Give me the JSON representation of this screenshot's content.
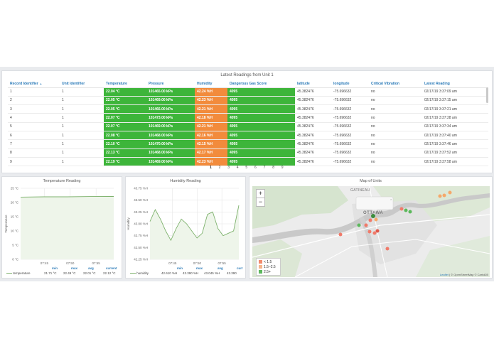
{
  "table_panel": {
    "title": "Latest Readings from Unit 1",
    "columns": [
      "Record Identifier",
      "Unit Identifier",
      "Temperature",
      "Pressure",
      "Humidity",
      "Dangerous Gas Score",
      "latitude",
      "longitude",
      "Critical Vibration",
      "Latest Reading"
    ],
    "sort_indicator": "▲",
    "rows": [
      [
        "1",
        "1",
        "22.04 °C",
        "101465.00 kPa",
        "42.24 %H",
        "4095",
        "45.382476",
        "-75.696632",
        "no",
        "02/17/19 3:37:09 am"
      ],
      [
        "2",
        "1",
        "22.05 °C",
        "101469.00 kPa",
        "42.23 %H",
        "4095",
        "45.382476",
        "-75.696632",
        "no",
        "02/17/19 3:37:15 am"
      ],
      [
        "3",
        "1",
        "22.05 °C",
        "101466.00 kPa",
        "42.21 %H",
        "4095",
        "45.382476",
        "-75.696632",
        "no",
        "02/17/19 3:37:21 am"
      ],
      [
        "4",
        "1",
        "22.07 °C",
        "101473.00 kPa",
        "42.18 %H",
        "4095",
        "45.382476",
        "-75.696632",
        "no",
        "02/17/19 3:37:28 am"
      ],
      [
        "5",
        "1",
        "22.07 °C",
        "101469.00 kPa",
        "42.21 %H",
        "4095",
        "45.382476",
        "-75.696632",
        "no",
        "02/17/19 3:37:34 am"
      ],
      [
        "6",
        "1",
        "22.08 °C",
        "101468.00 kPa",
        "42.16 %H",
        "4095",
        "45.382476",
        "-75.696632",
        "no",
        "02/17/19 3:37:40 am"
      ],
      [
        "7",
        "1",
        "22.10 °C",
        "101470.00 kPa",
        "42.15 %H",
        "4095",
        "45.382476",
        "-75.696632",
        "no",
        "02/17/19 3:37:46 am"
      ],
      [
        "8",
        "1",
        "22.13 °C",
        "101468.00 kPa",
        "42.17 %H",
        "4095",
        "45.382476",
        "-75.696632",
        "no",
        "02/17/19 3:37:52 am"
      ],
      [
        "9",
        "1",
        "22.19 °C",
        "101469.00 kPa",
        "42.23 %H",
        "4095",
        "45.382476",
        "-75.696632",
        "no",
        "02/17/19 3:37:58 am"
      ]
    ],
    "pages": [
      "1",
      "2",
      "3",
      "4",
      "5",
      "6",
      "7",
      "8",
      "9"
    ],
    "current_page": "1",
    "colors": {
      "green": "#3db53a",
      "orange": "#f28b3c",
      "header": "#2a7ab8"
    }
  },
  "temperature_panel": {
    "title": "Temperature Reading",
    "ylabel": "Temperature",
    "legend": {
      "series": "temperature",
      "min_label": "min",
      "max_label": "max",
      "avg_label": "avg",
      "current_label": "current",
      "min": "21.71 °C",
      "max": "22.49 °C",
      "avg": "22.01 °C",
      "current": "22.12 °C"
    }
  },
  "humidity_panel": {
    "title": "Humidity Reading",
    "ylabel": "Humidity",
    "legend": {
      "series": "humidity",
      "min_label": "min",
      "max_label": "max",
      "avg_label": "avg",
      "current_label": "curr",
      "min": "42.610 %H",
      "max": "43.390 %H",
      "avg": "43.045 %H",
      "current": "43.390"
    }
  },
  "map_panel": {
    "title": "Map of Units",
    "zoom_in": "+",
    "zoom_out": "−",
    "place_labels": [
      "GATINEAU",
      "OTTAWA"
    ],
    "legend": [
      {
        "label": "< 1.5",
        "color": "#f28b6c"
      },
      {
        "label": "1.5–2.5",
        "color": "#f5b48a"
      },
      {
        "label": "2.5+",
        "color": "#5cb85c"
      }
    ],
    "attribution_leaflet": "Leaflet",
    "attribution_rest": " | © OpenStreetMap © CartoDB"
  },
  "chart_data": [
    {
      "type": "line",
      "title": "Temperature Reading",
      "ylabel": "Temperature",
      "x": [
        "07:40",
        "07:45",
        "07:50",
        "07:55",
        "07:58"
      ],
      "series": [
        {
          "name": "temperature",
          "values": [
            21.9,
            22.0,
            22.0,
            22.1,
            22.12
          ]
        }
      ],
      "yticks": [
        "0 °C",
        "5 °C",
        "10 °C",
        "15 °C",
        "20 °C",
        "25 °C"
      ],
      "xticks": [
        "07:45",
        "07:50",
        "07:55"
      ],
      "ylim": [
        0,
        25
      ]
    },
    {
      "type": "line",
      "title": "Humidity Reading",
      "ylabel": "Humidity",
      "x": [
        "07:40",
        "07:41",
        "07:42",
        "07:43",
        "07:44",
        "07:45",
        "07:46",
        "07:47",
        "07:48",
        "07:49",
        "07:50",
        "07:51",
        "07:52",
        "07:53",
        "07:54",
        "07:55",
        "07:56",
        "07:57"
      ],
      "series": [
        {
          "name": "humidity",
          "values": [
            43.05,
            43.3,
            43.1,
            42.85,
            42.65,
            42.9,
            43.1,
            43.0,
            42.85,
            42.7,
            42.8,
            43.2,
            43.25,
            42.9,
            42.75,
            42.8,
            42.85,
            43.39
          ]
        }
      ],
      "yticks": [
        "42.25 %H",
        "42.50 %H",
        "42.75 %H",
        "43.00 %H",
        "43.25 %H",
        "43.50 %H",
        "43.75 %H"
      ],
      "xticks": [
        "07:45",
        "07:50",
        "07:55"
      ],
      "ylim": [
        42.25,
        43.75
      ]
    }
  ]
}
